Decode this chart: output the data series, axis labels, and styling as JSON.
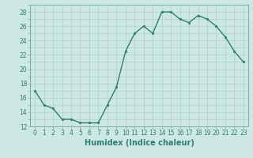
{
  "x": [
    0,
    1,
    2,
    3,
    4,
    5,
    6,
    7,
    8,
    9,
    10,
    11,
    12,
    13,
    14,
    15,
    16,
    17,
    18,
    19,
    20,
    21,
    22,
    23
  ],
  "y": [
    17,
    15,
    14.5,
    13,
    13,
    12.5,
    12.5,
    12.5,
    15,
    17.5,
    22.5,
    25,
    26,
    25,
    28,
    28,
    27,
    26.5,
    27.5,
    27,
    26,
    24.5,
    22.5,
    21
  ],
  "line_color": "#2e7d6e",
  "marker": "s",
  "marker_size": 2,
  "bg_color": "#cde8e4",
  "grid_color": "#b0d4cf",
  "xlabel": "Humidex (Indice chaleur)",
  "ylim": [
    12,
    29
  ],
  "xlim": [
    -0.5,
    23.5
  ],
  "yticks": [
    12,
    14,
    16,
    18,
    20,
    22,
    24,
    26,
    28
  ],
  "xticks": [
    0,
    1,
    2,
    3,
    4,
    5,
    6,
    7,
    8,
    9,
    10,
    11,
    12,
    13,
    14,
    15,
    16,
    17,
    18,
    19,
    20,
    21,
    22,
    23
  ],
  "tick_fontsize": 5.5,
  "xlabel_fontsize": 7,
  "line_width": 1.0
}
